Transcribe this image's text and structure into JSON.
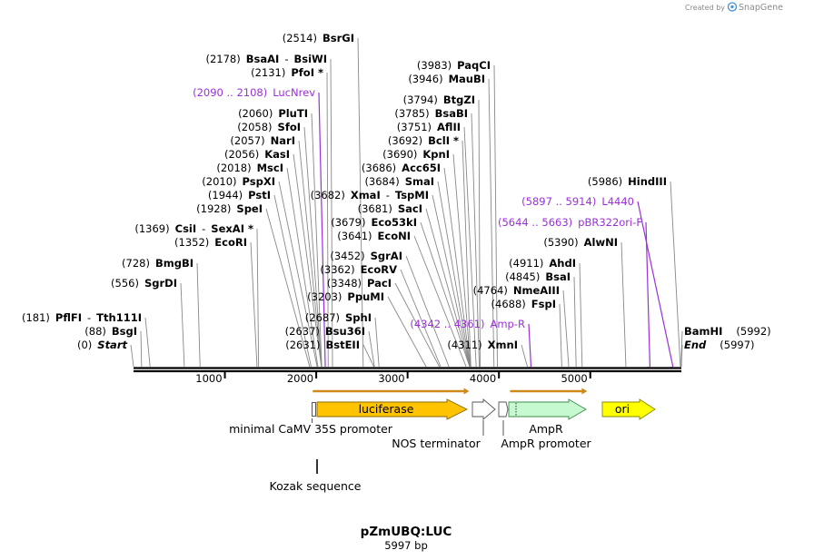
{
  "brand": {
    "created_by": "Created by",
    "name": "SnapGene"
  },
  "map": {
    "title": "pZmUBQ:LUC",
    "length_label": "5997 bp",
    "length_bp": 5997,
    "scale_ticks": [
      1000,
      2000,
      3000,
      4000,
      5000
    ]
  },
  "left_sites": [
    {
      "pos": "(2514)",
      "name": "BsrGI",
      "bp": 2514
    },
    {
      "pos": "(2178)",
      "name": "BsaAI",
      "sep": "-",
      "name2": "BsiWI",
      "bp": 2178
    },
    {
      "pos": "(2131)",
      "name": "PfoI *",
      "bp": 2131
    },
    {
      "pos": "(2090 .. 2108)",
      "name": "LucNrev",
      "bp": 2099,
      "primer": true
    },
    {
      "pos": "(2060)",
      "name": "PluTI",
      "bp": 2060
    },
    {
      "pos": "(2058)",
      "name": "SfoI",
      "bp": 2058
    },
    {
      "pos": "(2057)",
      "name": "NarI",
      "bp": 2057
    },
    {
      "pos": "(2056)",
      "name": "KasI",
      "bp": 2056
    },
    {
      "pos": "(2018)",
      "name": "MscI",
      "bp": 2018
    },
    {
      "pos": "(2010)",
      "name": "PspXI",
      "bp": 2010
    },
    {
      "pos": "(1944)",
      "name": "PstI",
      "bp": 1944
    },
    {
      "pos": "(1928)",
      "name": "SpeI",
      "bp": 1928
    },
    {
      "pos": "(1369)",
      "name": "CsiI",
      "sep": "-",
      "name2": "SexAI *",
      "bp": 1369
    },
    {
      "pos": "(1352)",
      "name": "EcoRI",
      "bp": 1352
    },
    {
      "pos": "(728)",
      "name": "BmgBI",
      "bp": 728
    },
    {
      "pos": "(556)",
      "name": "SgrDI",
      "bp": 556
    },
    {
      "pos": "(181)",
      "name": "PflFI",
      "sep": "-",
      "name2": "Tth111I",
      "bp": 181
    },
    {
      "pos": "(88)",
      "name": "BsgI",
      "bp": 88
    },
    {
      "pos": "(0)",
      "name": "Start",
      "bp": 0,
      "italic": true
    }
  ],
  "center_sites": [
    {
      "pos": "(3682)",
      "name": "XmaI",
      "sep": "-",
      "name2": "TspMI",
      "bp": 3682
    },
    {
      "pos": "(3681)",
      "name": "SacI",
      "bp": 3681
    },
    {
      "pos": "(3679)",
      "name": "Eco53kI",
      "bp": 3679
    },
    {
      "pos": "(3641)",
      "name": "EcoNI",
      "bp": 3641
    },
    {
      "pos": "(3452)",
      "name": "SgrAI",
      "bp": 3452
    },
    {
      "pos": "(3362)",
      "name": "EcoRV",
      "bp": 3362
    },
    {
      "pos": "(3348)",
      "name": "PacI",
      "bp": 3348
    },
    {
      "pos": "(3203)",
      "name": "PpuMI",
      "bp": 3203
    },
    {
      "pos": "(2687)",
      "name": "SphI",
      "bp": 2687
    },
    {
      "pos": "(2637)",
      "name": "Bsu36I",
      "bp": 2637
    },
    {
      "pos": "(2631)",
      "name": "BstEII",
      "bp": 2631
    }
  ],
  "right_upper_sites": [
    {
      "pos": "(3983)",
      "name": "PaqCI",
      "bp": 3983
    },
    {
      "pos": "(3946)",
      "name": "MauBI",
      "bp": 3946
    },
    {
      "pos": "(3794)",
      "name": "BtgZI",
      "bp": 3794
    },
    {
      "pos": "(3785)",
      "name": "BsaBI",
      "bp": 3785
    },
    {
      "pos": "(3751)",
      "name": "AflII",
      "bp": 3751
    },
    {
      "pos": "(3692)",
      "name": "BclI *",
      "bp": 3692
    },
    {
      "pos": "(3690)",
      "name": "KpnI",
      "bp": 3690
    },
    {
      "pos": "(3686)",
      "name": "Acc65I",
      "bp": 3686
    },
    {
      "pos": "(3684)",
      "name": "SmaI",
      "bp": 3684
    }
  ],
  "right_sites": [
    {
      "pos": "(5986)",
      "name": "HindIII",
      "bp": 5986
    },
    {
      "pos": "(5897 .. 5914)",
      "name": "L4440",
      "bp": 5905,
      "primer": true
    },
    {
      "pos": "(5644 .. 5663)",
      "name": "pBR322ori-F",
      "bp": 5653,
      "primer": true
    },
    {
      "pos": "(5390)",
      "name": "AlwNI",
      "bp": 5390
    },
    {
      "pos": "(4911)",
      "name": "AhdI",
      "bp": 4911
    },
    {
      "pos": "(4845)",
      "name": "BsaI",
      "bp": 4845
    },
    {
      "pos": "(4764)",
      "name": "NmeAIII",
      "bp": 4764
    },
    {
      "pos": "(4688)",
      "name": "FspI",
      "bp": 4688
    },
    {
      "pos": "(4342 .. 4361)",
      "name": "Amp-R",
      "bp": 4351,
      "primer": true
    },
    {
      "pos": "(4311)",
      "name": "XmnI",
      "bp": 4311
    }
  ],
  "end_sites": [
    {
      "pos": "(5992)",
      "name": "BamHI",
      "bp": 5992
    },
    {
      "pos": "(5997)",
      "name": "End",
      "bp": 5997,
      "italic": true
    }
  ],
  "features": [
    {
      "name": "minimal CaMV 35S promoter",
      "start": 1962,
      "end": 2003
    },
    {
      "name": "luciferase",
      "start": 2019,
      "end": 3675
    },
    {
      "name": "NOS terminator",
      "start": 3736,
      "end": 3983
    },
    {
      "name": "AmpR promoter",
      "start": 4017,
      "end": 4121
    },
    {
      "name": "AmpR",
      "start": 4122,
      "end": 4967
    },
    {
      "name": "ori",
      "start": 5137,
      "end": 5725
    },
    {
      "name": "Kozak sequence",
      "start": 2010,
      "end": 2018
    }
  ],
  "orfs": [
    {
      "start": 1962,
      "end": 3675
    },
    {
      "start": 4122,
      "end": 4967
    }
  ],
  "colors": {
    "primer": "#9b30d9",
    "luciferase": "#ffc300",
    "ampr": "#c6f9cf",
    "ori": "#ffff00",
    "orf": "#d08a1a"
  }
}
